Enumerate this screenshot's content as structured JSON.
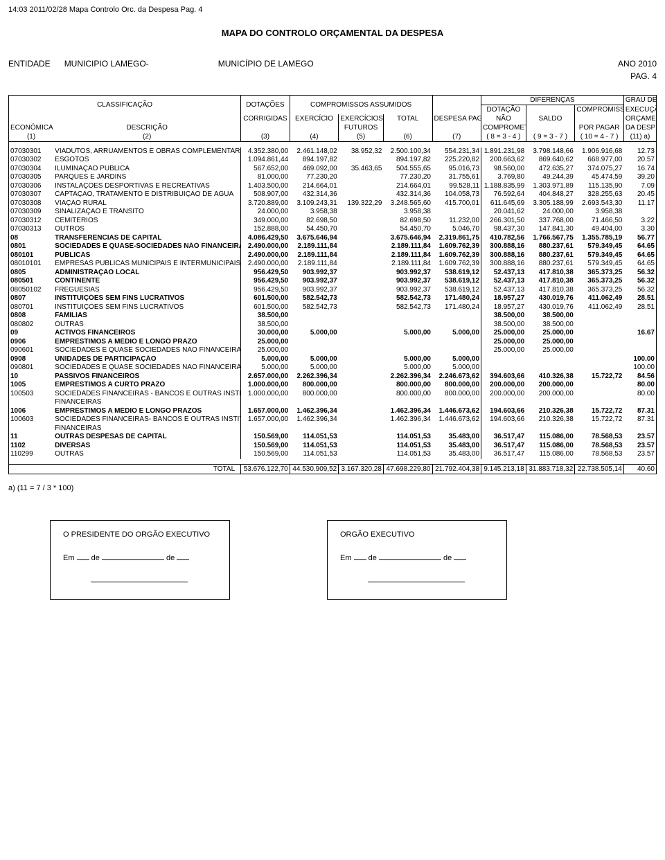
{
  "header_line": "14:03 2011/02/28  Mapa Controlo Orc. da Despesa  Pag. 4",
  "doc_title": "MAPA DO CONTROLO ORÇAMENTAL DA DESPESA",
  "entidade_label": "ENTIDADE",
  "entidade_value": "MUNICIPIO LAMEGO-",
  "municipio_value": "MUNICÍPIO DE LAMEGO",
  "ano_label": "ANO",
  "ano_value": "2010",
  "pag_label": "PAG.",
  "pag_value": "4",
  "head": {
    "classificacao": "CLASSIFICAÇÃO",
    "dotacoes": "DOTAÇÕES",
    "compromissos_assumidos": "COMPROMISSOS ASSUMIDOS",
    "diferencas": "DIFERENÇAS",
    "grau_de": "GRAU DE",
    "execucao": "EXECUÇÃO",
    "corrigidas": "CORRIGIDAS",
    "exercicio": "EXERCÍCIO",
    "exercicios": "EXERCÍCIOS",
    "futuros": "FUTUROS",
    "total": "TOTAL",
    "despesa_paga": "DESPESA PAGA",
    "dotacao": "DOTAÇÃO",
    "nao": "NÃO",
    "comprometida": "COMPROMETIDA",
    "saldo": "SALDO",
    "compromissos": "COMPROMISSOS",
    "por_pagar": "POR PAGAR",
    "orcamental": "ORÇAMENTAL",
    "da_despesa": "DA DESPESA",
    "economica": "ECONÓMICA",
    "descricao": "DESCRIÇÃO",
    "n1": "(1)",
    "n2": "(2)",
    "n3": "(3)",
    "n4": "(4)",
    "n5": "(5)",
    "n6": "(6)",
    "n7": "(7)",
    "n8": "( 8 = 3 - 4 )",
    "n9": "( 9 = 3 - 7 )",
    "n10": "( 10 = 4 - 7 )",
    "n11": "(11) a)"
  },
  "rows": [
    {
      "b": false,
      "c": [
        "07030301",
        "VIADUTOS, ARRUAMENTOS E OBRAS COMPLEMENTARES",
        "4.352.380,00",
        "2.461.148,02",
        "38.952,32",
        "2.500.100,34",
        "554.231,34",
        "1.891.231,98",
        "3.798.148,66",
        "1.906.916,68",
        "12.73"
      ]
    },
    {
      "b": false,
      "c": [
        "07030302",
        "ESGOTOS",
        "1.094.861,44",
        "894.197,82",
        "",
        "894.197,82",
        "225.220,82",
        "200.663,62",
        "869.640,62",
        "668.977,00",
        "20.57"
      ]
    },
    {
      "b": false,
      "c": [
        "07030304",
        "ILUMINAÇÃO PÚBLICA",
        "567.652,00",
        "469.092,00",
        "35.463,65",
        "504.555,65",
        "95.016,73",
        "98.560,00",
        "472.635,27",
        "374.075,27",
        "16.74"
      ]
    },
    {
      "b": false,
      "c": [
        "07030305",
        "PARQUES E JARDINS",
        "81.000,00",
        "77.230,20",
        "",
        "77.230,20",
        "31.755,61",
        "3.769,80",
        "49.244,39",
        "45.474,59",
        "39.20"
      ]
    },
    {
      "b": false,
      "c": [
        "07030306",
        "INSTALAÇÕES DESPORTIVAS E RECREATIVAS",
        "1.403.500,00",
        "214.664,01",
        "",
        "214.664,01",
        "99.528,11",
        "1.188.835,99",
        "1.303.971,89",
        "115.135,90",
        "7.09"
      ]
    },
    {
      "b": false,
      "c": [
        "07030307",
        "CAPTAÇÃO, TRATAMENTO E DISTRIBUIÇÃO DE ÁGUA",
        "508.907,00",
        "432.314,36",
        "",
        "432.314,36",
        "104.058,73",
        "76.592,64",
        "404.848,27",
        "328.255,63",
        "20.45"
      ]
    },
    {
      "b": false,
      "c": [
        "07030308",
        "VIAÇÃO RURAL",
        "3.720.889,00",
        "3.109.243,31",
        "139.322,29",
        "3.248.565,60",
        "415.700,01",
        "611.645,69",
        "3.305.188,99",
        "2.693.543,30",
        "11.17"
      ]
    },
    {
      "b": false,
      "c": [
        "07030309",
        "SINALIZAÇÃO E TRÂNSITO",
        "24.000,00",
        "3.958,38",
        "",
        "3.958,38",
        "",
        "20.041,62",
        "24.000,00",
        "3.958,38",
        ""
      ]
    },
    {
      "b": false,
      "c": [
        "07030312",
        "CEMITÉRIOS",
        "349.000,00",
        "82.698,50",
        "",
        "82.698,50",
        "11.232,00",
        "266.301,50",
        "337.768,00",
        "71.466,50",
        "3.22"
      ]
    },
    {
      "b": false,
      "c": [
        "07030313",
        "OUTROS",
        "152.888,00",
        "54.450,70",
        "",
        "54.450,70",
        "5.046,70",
        "98.437,30",
        "147.841,30",
        "49.404,00",
        "3.30"
      ]
    },
    {
      "b": true,
      "c": [
        "08",
        "TRANSFERÊNCIAS DE CAPITAL",
        "4.086.429,50",
        "3.675.646,94",
        "",
        "3.675.646,94",
        "2.319.861,75",
        "410.782,56",
        "1.766.567,75",
        "1.355.785,19",
        "56.77"
      ]
    },
    {
      "b": true,
      "c": [
        "0801",
        "SOCIEDADES E QUASE-SOCIEDADES NÃO FINANCEIRAS",
        "2.490.000,00",
        "2.189.111,84",
        "",
        "2.189.111,84",
        "1.609.762,39",
        "300.888,16",
        "880.237,61",
        "579.349,45",
        "64.65"
      ]
    },
    {
      "b": true,
      "c": [
        "080101",
        "PÚBLICAS",
        "2.490.000,00",
        "2.189.111,84",
        "",
        "2.189.111,84",
        "1.609.762,39",
        "300.888,16",
        "880.237,61",
        "579.349,45",
        "64.65"
      ]
    },
    {
      "b": false,
      "c": [
        "08010101",
        "EMPRESAS PÚBLICAS MUNICIPAIS E INTERMUNICIPAIS",
        "2.490.000,00",
        "2.189.111,84",
        "",
        "2.189.111,84",
        "1.609.762,39",
        "300.888,16",
        "880.237,61",
        "579.349,45",
        "64.65"
      ]
    },
    {
      "b": true,
      "c": [
        "0805",
        "ADMINISTRAÇÃO LOCAL",
        "956.429,50",
        "903.992,37",
        "",
        "903.992,37",
        "538.619,12",
        "52.437,13",
        "417.810,38",
        "365.373,25",
        "56.32"
      ]
    },
    {
      "b": true,
      "c": [
        "080501",
        "CONTINENTE",
        "956.429,50",
        "903.992,37",
        "",
        "903.992,37",
        "538.619,12",
        "52.437,13",
        "417.810,38",
        "365.373,25",
        "56.32"
      ]
    },
    {
      "b": false,
      "c": [
        "08050102",
        "FREGUESIAS",
        "956.429,50",
        "903.992,37",
        "",
        "903.992,37",
        "538.619,12",
        "52.437,13",
        "417.810,38",
        "365.373,25",
        "56.32"
      ]
    },
    {
      "b": true,
      "c": [
        "0807",
        "INSTITUIÇÕES SEM FINS LUCRATIVOS",
        "601.500,00",
        "582.542,73",
        "",
        "582.542,73",
        "171.480,24",
        "18.957,27",
        "430.019,76",
        "411.062,49",
        "28.51"
      ]
    },
    {
      "b": false,
      "c": [
        "080701",
        "INSTITUIÇÕES SEM FINS LUCRATIVOS",
        "601.500,00",
        "582.542,73",
        "",
        "582.542,73",
        "171.480,24",
        "18.957,27",
        "430.019,76",
        "411.062,49",
        "28.51"
      ]
    },
    {
      "b": true,
      "c": [
        "0808",
        "FAMÍLIAS",
        "38.500,00",
        "",
        "",
        "",
        "",
        "38.500,00",
        "38.500,00",
        "",
        ""
      ]
    },
    {
      "b": false,
      "c": [
        "080802",
        "OUTRAS",
        "38.500,00",
        "",
        "",
        "",
        "",
        "38.500,00",
        "38.500,00",
        "",
        ""
      ]
    },
    {
      "b": true,
      "c": [
        "09",
        "ACTIVOS FINANCEIROS",
        "30.000,00",
        "5.000,00",
        "",
        "5.000,00",
        "5.000,00",
        "25.000,00",
        "25.000,00",
        "",
        "16.67"
      ]
    },
    {
      "b": true,
      "c": [
        "0906",
        "EMPRÉSTIMOS A MÉDIO E LONGO PRAZO",
        "25.000,00",
        "",
        "",
        "",
        "",
        "25.000,00",
        "25.000,00",
        "",
        ""
      ]
    },
    {
      "b": false,
      "c": [
        "090601",
        "SOCIEDADES E QUASE SOCIEDADES NÃO FINANCEIRAS - PRIVADAS",
        "25.000,00",
        "",
        "",
        "",
        "",
        "25.000,00",
        "25.000,00",
        "",
        ""
      ]
    },
    {
      "b": true,
      "c": [
        "0908",
        "UNIDADES DE PARTICIPAÇÃO",
        "5.000,00",
        "5.000,00",
        "",
        "5.000,00",
        "5.000,00",
        "",
        "",
        "",
        "100.00"
      ]
    },
    {
      "b": false,
      "c": [
        "090801",
        "SOCIEDADES E QUASE SOCIEDADES NÃO FINANCEIRAS - PRIVADAS",
        "5.000,00",
        "5.000,00",
        "",
        "5.000,00",
        "5.000,00",
        "",
        "",
        "",
        "100.00"
      ]
    },
    {
      "b": true,
      "c": [
        "10",
        "PASSIVOS FINANCEIROS",
        "2.657.000,00",
        "2.262.396,34",
        "",
        "2.262.396,34",
        "2.246.673,62",
        "394.603,66",
        "410.326,38",
        "15.722,72",
        "84.56"
      ]
    },
    {
      "b": true,
      "c": [
        "1005",
        "EMPRÉSTIMOS A CURTO PRAZO",
        "1.000.000,00",
        "800.000,00",
        "",
        "800.000,00",
        "800.000,00",
        "200.000,00",
        "200.000,00",
        "",
        "80.00"
      ]
    },
    {
      "b": false,
      "c": [
        "100503",
        "SOCIEDADES FINANCEIRAS - BANCOS E OUTRAS INSTITUIÇÕES",
        "1.000.000,00",
        "800.000,00",
        "",
        "800.000,00",
        "800.000,00",
        "200.000,00",
        "200.000,00",
        "",
        "80.00"
      ]
    },
    {
      "b": false,
      "c": [
        "",
        "FINANCEIRAS",
        "",
        "",
        "",
        "",
        "",
        "",
        "",
        "",
        ""
      ]
    },
    {
      "b": true,
      "c": [
        "1006",
        "EMPRÉSTIMOS A MÉDIO E LONGO PRAZOS",
        "1.657.000,00",
        "1.462.396,34",
        "",
        "1.462.396,34",
        "1.446.673,62",
        "194.603,66",
        "210.326,38",
        "15.722,72",
        "87.31"
      ]
    },
    {
      "b": false,
      "c": [
        "100603",
        "SOCIEDADES  FINANCEIRAS- BANCOS E OUTRAS INSTITUIÇÕES",
        "1.657.000,00",
        "1.462.396,34",
        "",
        "1.462.396,34",
        "1.446.673,62",
        "194.603,66",
        "210.326,38",
        "15.722,72",
        "87.31"
      ]
    },
    {
      "b": false,
      "c": [
        "",
        "FINANCEIRAS",
        "",
        "",
        "",
        "",
        "",
        "",
        "",
        "",
        ""
      ]
    },
    {
      "b": true,
      "c": [
        "11",
        "OUTRAS DESPESAS DE CAPITAL",
        "150.569,00",
        "114.051,53",
        "",
        "114.051,53",
        "35.483,00",
        "36.517,47",
        "115.086,00",
        "78.568,53",
        "23.57"
      ]
    },
    {
      "b": true,
      "c": [
        "1102",
        "DIVERSAS",
        "150.569,00",
        "114.051,53",
        "",
        "114.051,53",
        "35.483,00",
        "36.517,47",
        "115.086,00",
        "78.568,53",
        "23.57"
      ]
    },
    {
      "b": false,
      "c": [
        "110299",
        "OUTRAS",
        "150.569,00",
        "114.051,53",
        "",
        "114.051,53",
        "35.483,00",
        "36.517,47",
        "115.086,00",
        "78.568,53",
        "23.57"
      ]
    }
  ],
  "total_label": "TOTAL",
  "total_row": [
    "53.676.122,70",
    "44.530.909,52",
    "3.167.320,28",
    "47.698.229,80",
    "21.792.404,38",
    "9.145.213,18",
    "31.883.718,32",
    "22.738.505,14",
    "40.60"
  ],
  "footnote": "a) (11 = 7 / 3 * 100)",
  "sig_left_title": "O PRESIDENTE DO ORGÃO EXECUTIVO",
  "sig_right_title": "ORGÃO EXECUTIVO",
  "sig_em": "Em",
  "sig_de": "de"
}
